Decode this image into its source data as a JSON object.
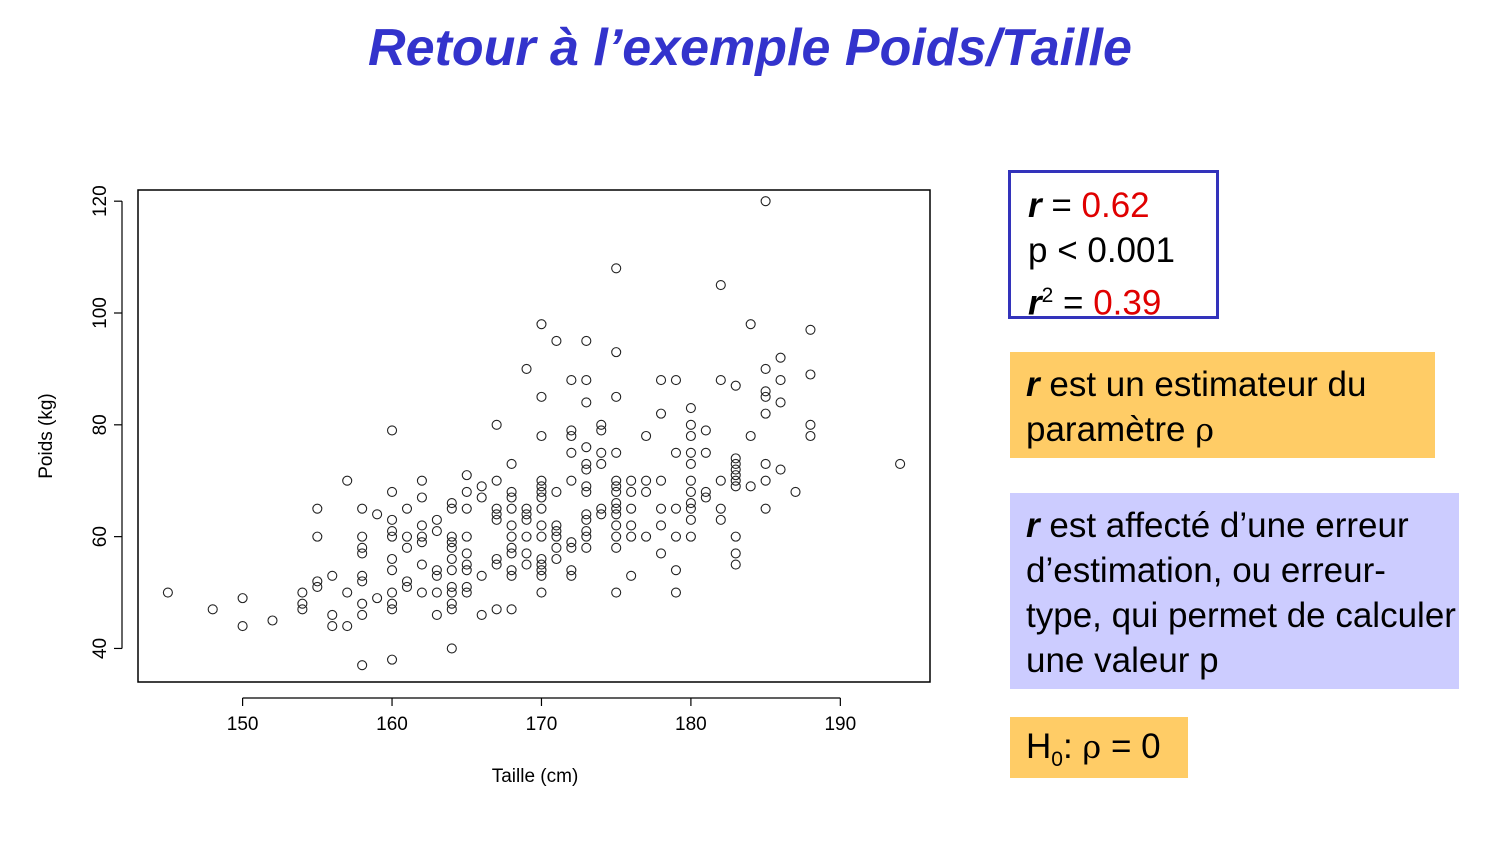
{
  "title": "Retour à l’exemple Poids/Taille",
  "stats": {
    "r_symbol": "r",
    "r_eq": " = ",
    "r_value": "0.62",
    "p_text": "p < 0.001",
    "r2_symbol": "r",
    "r2_sup": "2",
    "r2_eq": " = ",
    "r2_value": "0.39",
    "value_color": "#e00000",
    "border_color": "#3333bb"
  },
  "notes": {
    "estimator": {
      "symbol": "r",
      "text": " est un estimateur du paramètre ",
      "param": "ρ",
      "background": "#ffcc66"
    },
    "error": {
      "symbol": "r",
      "text": " est affecté d’une erreur d’estimation, ou erreur-type, qui permet de calculer une valeur p",
      "background": "#ccccff"
    },
    "hypothesis": {
      "h": "H",
      "sub": "0",
      "rest": ": ",
      "param": "ρ",
      "eq": " = 0",
      "background": "#ffcc66"
    }
  },
  "chart_data": {
    "type": "scatter",
    "xlabel": "Taille (cm)",
    "ylabel": "Poids (kg)",
    "xlim": [
      143,
      196
    ],
    "ylim": [
      34,
      122
    ],
    "xticks": [
      150,
      160,
      170,
      180,
      190
    ],
    "yticks": [
      40,
      60,
      80,
      100,
      120
    ],
    "grid": false,
    "marker": "open-circle",
    "points": [
      [
        145,
        50
      ],
      [
        148,
        47
      ],
      [
        150,
        49
      ],
      [
        150,
        44
      ],
      [
        152,
        45
      ],
      [
        154,
        50
      ],
      [
        154,
        48
      ],
      [
        154,
        47
      ],
      [
        155,
        65
      ],
      [
        155,
        60
      ],
      [
        155,
        52
      ],
      [
        155,
        51
      ],
      [
        156,
        53
      ],
      [
        156,
        46
      ],
      [
        156,
        44
      ],
      [
        157,
        70
      ],
      [
        157,
        50
      ],
      [
        157,
        44
      ],
      [
        158,
        65
      ],
      [
        158,
        60
      ],
      [
        158,
        58
      ],
      [
        158,
        57
      ],
      [
        158,
        53
      ],
      [
        158,
        52
      ],
      [
        158,
        48
      ],
      [
        158,
        46
      ],
      [
        158,
        37
      ],
      [
        159,
        64
      ],
      [
        159,
        49
      ],
      [
        160,
        79
      ],
      [
        160,
        68
      ],
      [
        160,
        63
      ],
      [
        160,
        61
      ],
      [
        160,
        60
      ],
      [
        160,
        56
      ],
      [
        160,
        54
      ],
      [
        160,
        50
      ],
      [
        160,
        48
      ],
      [
        160,
        47
      ],
      [
        160,
        38
      ],
      [
        161,
        65
      ],
      [
        161,
        60
      ],
      [
        161,
        58
      ],
      [
        161,
        52
      ],
      [
        161,
        51
      ],
      [
        162,
        70
      ],
      [
        162,
        67
      ],
      [
        162,
        62
      ],
      [
        162,
        60
      ],
      [
        162,
        59
      ],
      [
        162,
        55
      ],
      [
        162,
        50
      ],
      [
        163,
        63
      ],
      [
        163,
        61
      ],
      [
        163,
        54
      ],
      [
        163,
        53
      ],
      [
        163,
        50
      ],
      [
        163,
        46
      ],
      [
        164,
        66
      ],
      [
        164,
        65
      ],
      [
        164,
        60
      ],
      [
        164,
        59
      ],
      [
        164,
        58
      ],
      [
        164,
        56
      ],
      [
        164,
        54
      ],
      [
        164,
        51
      ],
      [
        164,
        50
      ],
      [
        164,
        48
      ],
      [
        164,
        47
      ],
      [
        164,
        40
      ],
      [
        165,
        71
      ],
      [
        165,
        68
      ],
      [
        165,
        65
      ],
      [
        165,
        60
      ],
      [
        165,
        57
      ],
      [
        165,
        55
      ],
      [
        165,
        54
      ],
      [
        165,
        51
      ],
      [
        165,
        50
      ],
      [
        166,
        69
      ],
      [
        166,
        67
      ],
      [
        166,
        53
      ],
      [
        166,
        46
      ],
      [
        167,
        80
      ],
      [
        167,
        70
      ],
      [
        167,
        65
      ],
      [
        167,
        64
      ],
      [
        167,
        63
      ],
      [
        167,
        56
      ],
      [
        167,
        55
      ],
      [
        167,
        47
      ],
      [
        168,
        73
      ],
      [
        168,
        68
      ],
      [
        168,
        67
      ],
      [
        168,
        65
      ],
      [
        168,
        62
      ],
      [
        168,
        60
      ],
      [
        168,
        58
      ],
      [
        168,
        57
      ],
      [
        168,
        54
      ],
      [
        168,
        53
      ],
      [
        168,
        47
      ],
      [
        169,
        90
      ],
      [
        169,
        65
      ],
      [
        169,
        64
      ],
      [
        169,
        63
      ],
      [
        169,
        60
      ],
      [
        169,
        57
      ],
      [
        169,
        55
      ],
      [
        170,
        98
      ],
      [
        170,
        85
      ],
      [
        170,
        78
      ],
      [
        170,
        70
      ],
      [
        170,
        69
      ],
      [
        170,
        68
      ],
      [
        170,
        67
      ],
      [
        170,
        65
      ],
      [
        170,
        62
      ],
      [
        170,
        60
      ],
      [
        170,
        56
      ],
      [
        170,
        55
      ],
      [
        170,
        54
      ],
      [
        170,
        53
      ],
      [
        170,
        50
      ],
      [
        171,
        95
      ],
      [
        171,
        68
      ],
      [
        171,
        62
      ],
      [
        171,
        61
      ],
      [
        171,
        60
      ],
      [
        171,
        58
      ],
      [
        171,
        56
      ],
      [
        172,
        88
      ],
      [
        172,
        79
      ],
      [
        172,
        78
      ],
      [
        172,
        75
      ],
      [
        172,
        70
      ],
      [
        172,
        59
      ],
      [
        172,
        58
      ],
      [
        172,
        54
      ],
      [
        172,
        53
      ],
      [
        173,
        95
      ],
      [
        173,
        88
      ],
      [
        173,
        84
      ],
      [
        173,
        76
      ],
      [
        173,
        73
      ],
      [
        173,
        72
      ],
      [
        173,
        69
      ],
      [
        173,
        68
      ],
      [
        173,
        64
      ],
      [
        173,
        63
      ],
      [
        173,
        61
      ],
      [
        173,
        60
      ],
      [
        173,
        58
      ],
      [
        174,
        80
      ],
      [
        174,
        79
      ],
      [
        174,
        75
      ],
      [
        174,
        73
      ],
      [
        174,
        65
      ],
      [
        174,
        64
      ],
      [
        175,
        108
      ],
      [
        175,
        93
      ],
      [
        175,
        85
      ],
      [
        175,
        75
      ],
      [
        175,
        70
      ],
      [
        175,
        69
      ],
      [
        175,
        68
      ],
      [
        175,
        66
      ],
      [
        175,
        65
      ],
      [
        175,
        64
      ],
      [
        175,
        62
      ],
      [
        175,
        60
      ],
      [
        175,
        58
      ],
      [
        175,
        50
      ],
      [
        176,
        70
      ],
      [
        176,
        68
      ],
      [
        176,
        65
      ],
      [
        176,
        62
      ],
      [
        176,
        60
      ],
      [
        176,
        53
      ],
      [
        177,
        78
      ],
      [
        177,
        70
      ],
      [
        177,
        68
      ],
      [
        177,
        60
      ],
      [
        178,
        88
      ],
      [
        178,
        82
      ],
      [
        178,
        70
      ],
      [
        178,
        65
      ],
      [
        178,
        62
      ],
      [
        178,
        57
      ],
      [
        179,
        88
      ],
      [
        179,
        75
      ],
      [
        179,
        65
      ],
      [
        179,
        60
      ],
      [
        179,
        54
      ],
      [
        179,
        50
      ],
      [
        180,
        83
      ],
      [
        180,
        80
      ],
      [
        180,
        78
      ],
      [
        180,
        75
      ],
      [
        180,
        73
      ],
      [
        180,
        70
      ],
      [
        180,
        68
      ],
      [
        180,
        66
      ],
      [
        180,
        65
      ],
      [
        180,
        63
      ],
      [
        180,
        60
      ],
      [
        181,
        79
      ],
      [
        181,
        75
      ],
      [
        181,
        68
      ],
      [
        181,
        67
      ],
      [
        182,
        105
      ],
      [
        182,
        88
      ],
      [
        182,
        70
      ],
      [
        182,
        65
      ],
      [
        182,
        63
      ],
      [
        183,
        87
      ],
      [
        183,
        74
      ],
      [
        183,
        73
      ],
      [
        183,
        72
      ],
      [
        183,
        71
      ],
      [
        183,
        70
      ],
      [
        183,
        69
      ],
      [
        183,
        60
      ],
      [
        183,
        57
      ],
      [
        183,
        55
      ],
      [
        184,
        98
      ],
      [
        184,
        78
      ],
      [
        184,
        69
      ],
      [
        185,
        120
      ],
      [
        185,
        90
      ],
      [
        185,
        86
      ],
      [
        185,
        85
      ],
      [
        185,
        82
      ],
      [
        185,
        73
      ],
      [
        185,
        70
      ],
      [
        185,
        65
      ],
      [
        186,
        92
      ],
      [
        186,
        88
      ],
      [
        186,
        84
      ],
      [
        186,
        72
      ],
      [
        187,
        68
      ],
      [
        188,
        97
      ],
      [
        188,
        89
      ],
      [
        188,
        80
      ],
      [
        188,
        78
      ],
      [
        194,
        73
      ]
    ]
  }
}
